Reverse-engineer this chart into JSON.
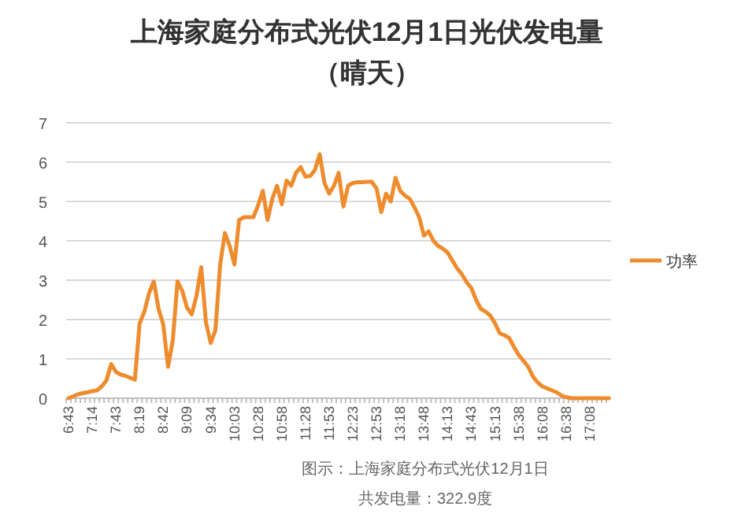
{
  "chart_data": {
    "type": "line",
    "title": "上海家庭分布式光伏12月1日光伏发电量",
    "subtitle": "（晴天）",
    "categories": [
      "6:43",
      null,
      null,
      null,
      null,
      "7:14",
      null,
      null,
      null,
      null,
      "7:43",
      null,
      null,
      null,
      null,
      "8:19",
      null,
      null,
      null,
      null,
      "8:42",
      null,
      null,
      null,
      null,
      "9:09",
      null,
      null,
      null,
      null,
      "9:34",
      null,
      null,
      null,
      null,
      "10:03",
      null,
      null,
      null,
      null,
      "10:28",
      null,
      null,
      null,
      null,
      "10:58",
      null,
      null,
      null,
      null,
      "11:28",
      null,
      null,
      null,
      null,
      "11:53",
      null,
      null,
      null,
      null,
      "12:23",
      null,
      null,
      null,
      null,
      "12:53",
      null,
      null,
      null,
      null,
      "13:18",
      null,
      null,
      null,
      null,
      "13:48",
      null,
      null,
      null,
      null,
      "14:13",
      null,
      null,
      null,
      null,
      "14:43",
      null,
      null,
      null,
      null,
      "15:13",
      null,
      null,
      null,
      null,
      "15:38",
      null,
      null,
      null,
      null,
      "16:08",
      null,
      null,
      null,
      null,
      "16:38",
      null,
      null,
      null,
      null,
      "17:08",
      null,
      null,
      null,
      null
    ],
    "series": [
      {
        "name": "功率",
        "color": "#ee8c2d",
        "values": [
          0,
          0.05,
          0.1,
          0.13,
          0.15,
          0.18,
          0.2,
          0.3,
          0.45,
          0.87,
          0.67,
          0.6,
          0.57,
          0.52,
          0.47,
          1.9,
          2.2,
          2.67,
          2.97,
          2.27,
          1.87,
          0.8,
          1.47,
          2.97,
          2.73,
          2.3,
          2.13,
          2.6,
          3.33,
          1.93,
          1.4,
          1.73,
          3.4,
          4.2,
          3.87,
          3.4,
          4.53,
          4.6,
          4.6,
          4.6,
          4.9,
          5.27,
          4.53,
          5.07,
          5.4,
          4.93,
          5.53,
          5.4,
          5.73,
          5.87,
          5.63,
          5.65,
          5.8,
          6.2,
          5.47,
          5.2,
          5.4,
          5.73,
          4.87,
          5.4,
          5.47,
          5.49,
          5.49,
          5.5,
          5.5,
          5.33,
          4.73,
          5.2,
          5.0,
          5.6,
          5.27,
          5.15,
          5.07,
          4.85,
          4.6,
          4.13,
          4.24,
          4.0,
          3.87,
          3.8,
          3.7,
          3.5,
          3.3,
          3.15,
          2.95,
          2.8,
          2.5,
          2.27,
          2.2,
          2.1,
          1.9,
          1.65,
          1.6,
          1.53,
          1.3,
          1.1,
          0.95,
          0.8,
          0.55,
          0.4,
          0.3,
          0.25,
          0.2,
          0.15,
          0.07,
          0.03,
          0,
          0,
          0,
          0,
          0,
          0,
          0,
          0,
          0
        ]
      }
    ],
    "ylim": [
      0,
      7
    ],
    "yticks": [
      0,
      1,
      2,
      3,
      4,
      5,
      6,
      7
    ],
    "grid": "y",
    "legend": "right",
    "marker": "none",
    "line_style": "solid",
    "annotations": [
      "图示：上海家庭分布式光伏12月1日",
      "共发电量：322.9度"
    ]
  }
}
